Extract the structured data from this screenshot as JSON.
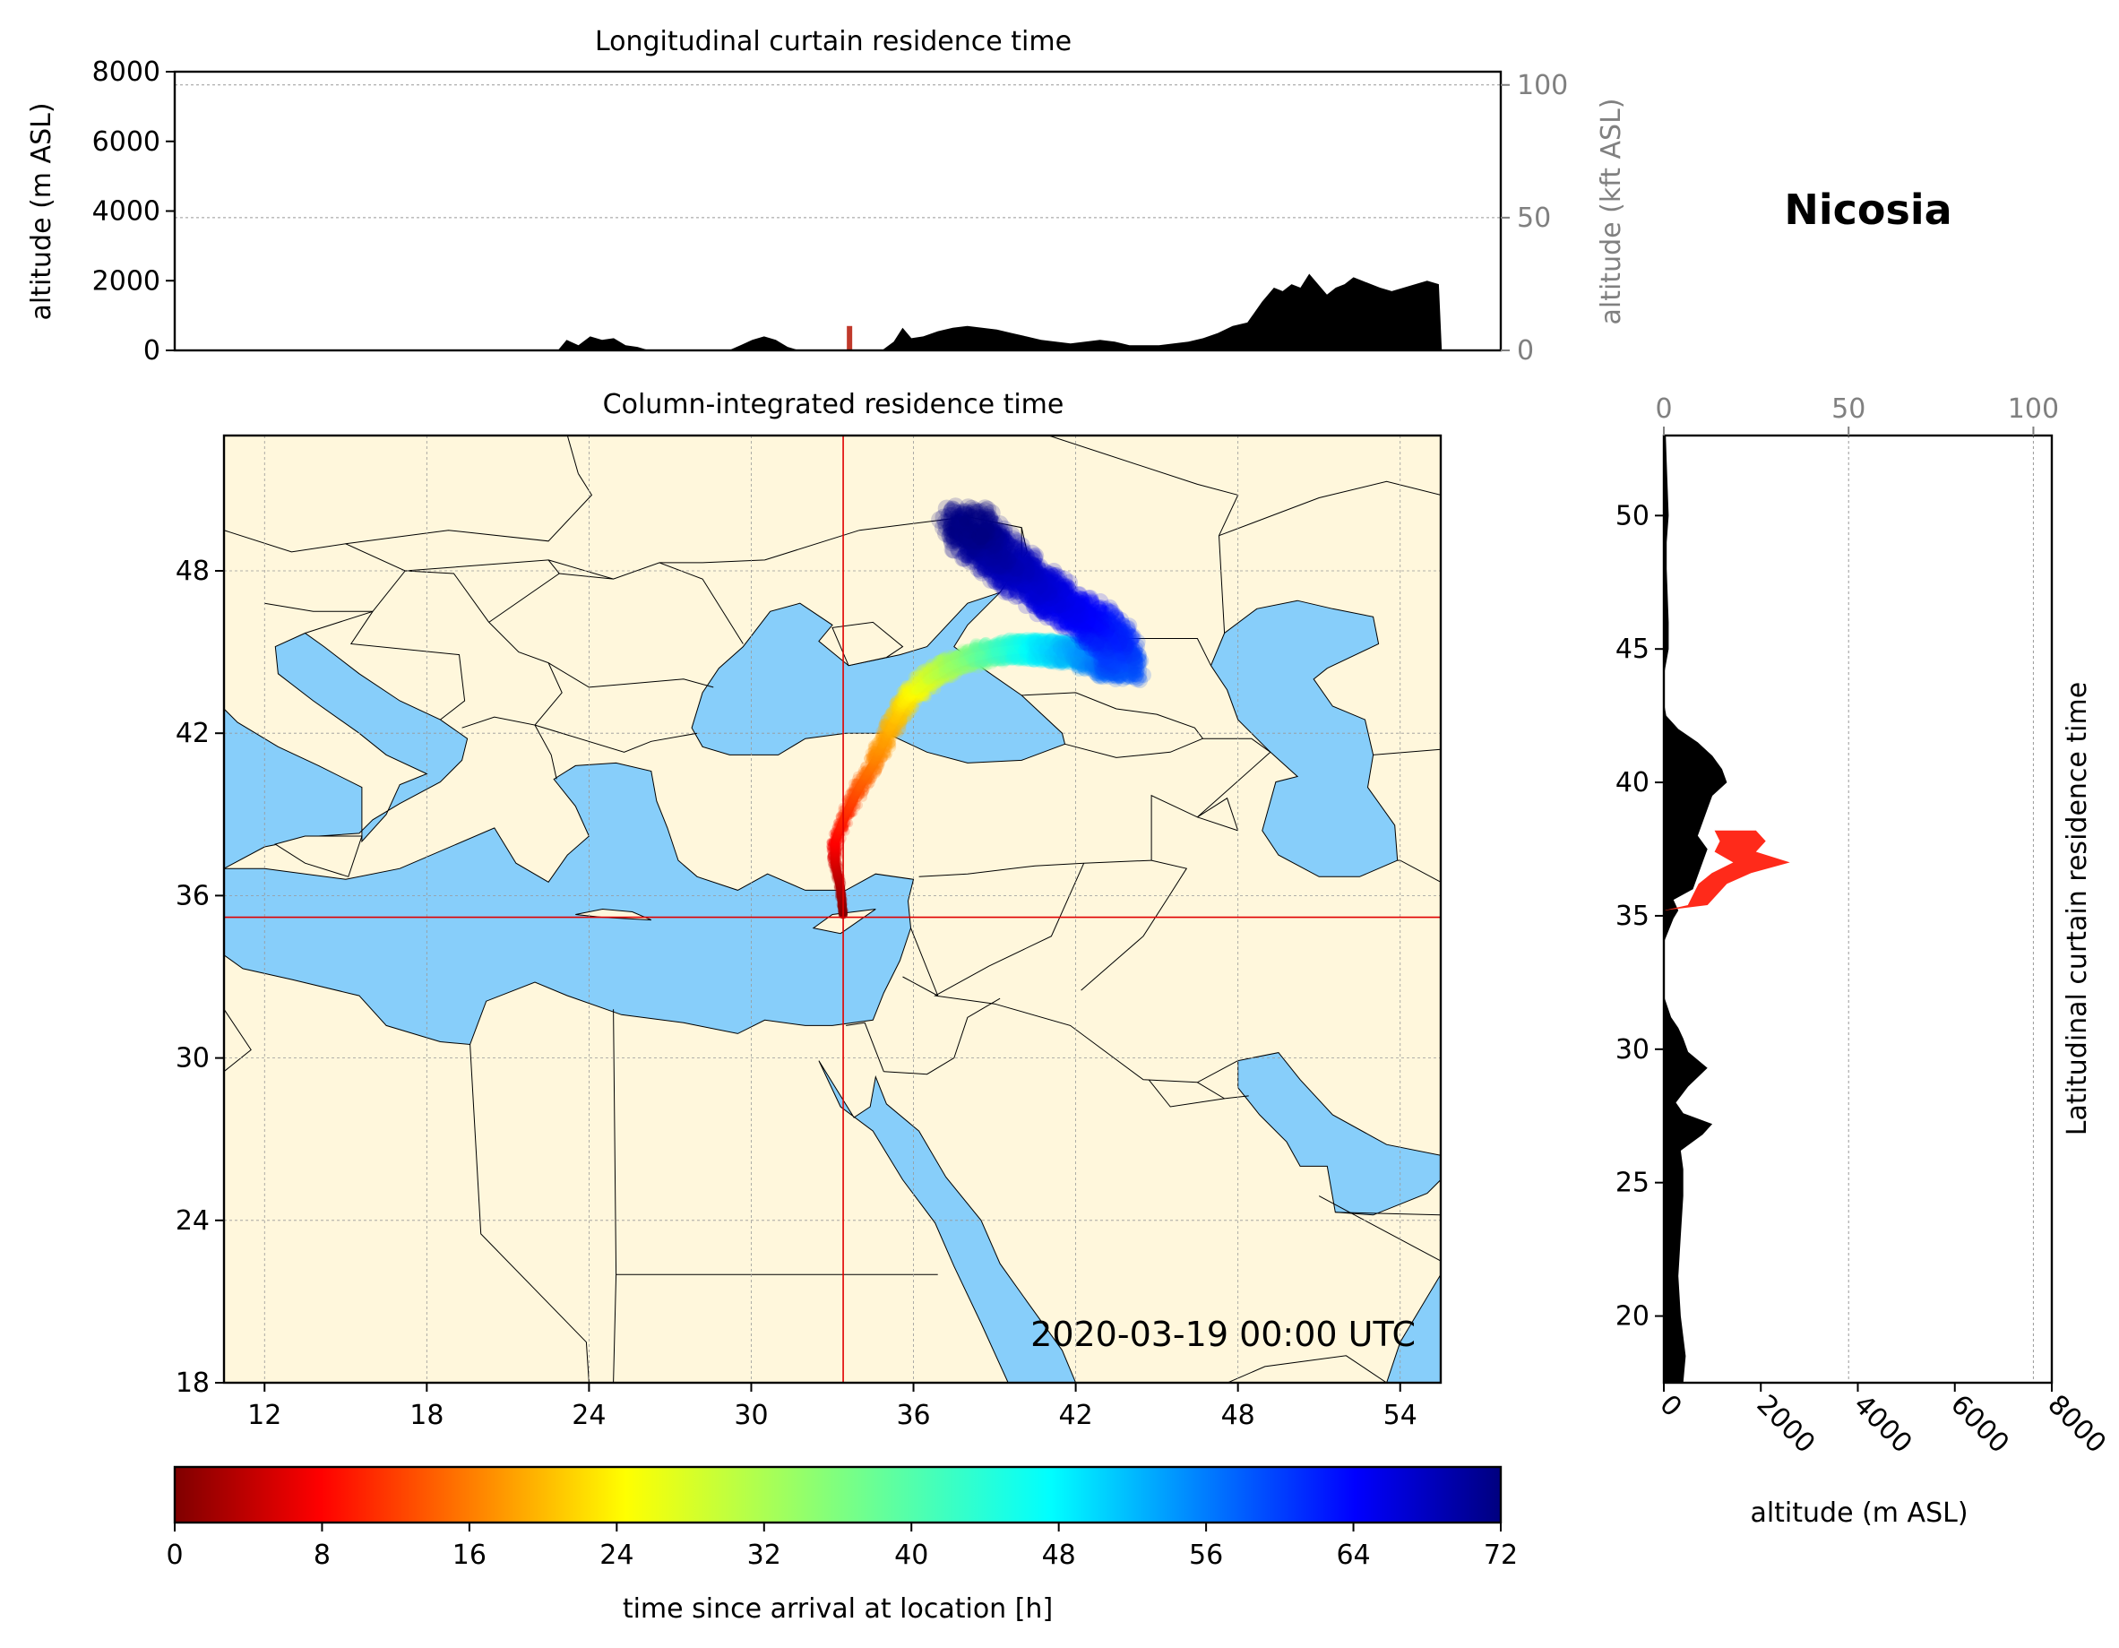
{
  "station": "Nicosia",
  "timestamp": "2020-03-19 00:00 UTC",
  "colors": {
    "sea": "#87cefa",
    "land": "#fff7dc",
    "border": "#000000",
    "crosshair": "#e00000",
    "curtain_fill": "#000000"
  },
  "chart_data": [
    {
      "id": "longitudinal",
      "type": "area",
      "title": "Longitudinal curtain residence time",
      "ylabel": "altitude (m ASL)",
      "ylabel_right": "altitude (kft ASL)",
      "ylim": [
        0,
        8000
      ],
      "yticks": [
        0,
        2000,
        4000,
        6000,
        8000
      ],
      "yticks_right": [
        0,
        50,
        100
      ],
      "xlim": [
        10.5,
        55.5
      ],
      "grid": true,
      "series": [
        {
          "x": [
            10.5,
            23.5,
            23.8,
            24.2,
            24.6,
            25.0,
            25.4,
            25.8,
            26.2,
            26.6,
            29.3,
            29.7,
            30.1,
            30.5,
            30.9,
            31.3,
            31.7,
            34.5,
            34.9,
            35.2,
            35.5,
            35.9,
            36.4,
            36.9,
            37.4,
            37.9,
            38.4,
            38.9,
            39.4,
            39.9,
            40.4,
            40.9,
            41.4,
            41.9,
            42.4,
            42.9,
            43.4,
            43.9,
            44.4,
            44.9,
            45.4,
            45.9,
            46.4,
            46.9,
            47.4,
            47.8,
            48.1,
            48.4,
            48.7,
            49.0,
            49.3,
            49.6,
            49.9,
            50.2,
            50.5,
            50.8,
            51.1,
            51.4,
            51.8,
            52.2,
            52.6,
            53.0,
            53.4,
            53.5,
            55.5
          ],
          "y": [
            0,
            0,
            300,
            150,
            400,
            300,
            350,
            150,
            100,
            0,
            0,
            150,
            300,
            400,
            300,
            100,
            0,
            0,
            250,
            650,
            350,
            400,
            550,
            650,
            700,
            650,
            600,
            500,
            400,
            300,
            250,
            200,
            250,
            300,
            250,
            150,
            150,
            150,
            200,
            250,
            350,
            500,
            700,
            800,
            1400,
            1800,
            1700,
            1900,
            1800,
            2200,
            1900,
            1600,
            1800,
            1900,
            2100,
            2000,
            1900,
            1800,
            1700,
            1800,
            1900,
            2000,
            1900,
            0,
            0
          ]
        }
      ],
      "arrival_marker": {
        "lon": 33.4,
        "altitude": [
          0,
          700
        ]
      }
    },
    {
      "id": "map",
      "type": "scatter",
      "title": "Column-integrated residence time",
      "xlim": [
        10.5,
        55.5
      ],
      "ylim": [
        18,
        53
      ],
      "xticks": [
        12,
        18,
        24,
        30,
        36,
        42,
        48,
        54
      ],
      "yticks": [
        18,
        24,
        30,
        36,
        42,
        48
      ],
      "grid": true,
      "crosshair": {
        "lon": 33.4,
        "lat": 35.2
      },
      "colorbar": {
        "label": "time since arrival at location [h]",
        "ticks": [
          0,
          8,
          16,
          24,
          32,
          40,
          48,
          56,
          64,
          72
        ],
        "range": [
          0,
          72
        ],
        "colormap": "jet"
      },
      "trajectory": {
        "lon": [
          33.4,
          33.3,
          33.1,
          33.1,
          33.5,
          34.0,
          34.6,
          35.1,
          35.6,
          36.1,
          36.7,
          37.4,
          38.2,
          39.0,
          39.8,
          40.6,
          41.4,
          42.2,
          43.0,
          43.8,
          43.4,
          42.5,
          41.5,
          40.4,
          39.4,
          38.5,
          37.8
        ],
        "lat": [
          35.3,
          36.3,
          37.2,
          38.0,
          39.0,
          40.0,
          41.0,
          42.1,
          43.0,
          43.6,
          44.1,
          44.5,
          44.8,
          45.0,
          45.1,
          45.1,
          45.0,
          45.0,
          44.7,
          44.4,
          45.5,
          46.2,
          46.8,
          47.5,
          48.3,
          49.1,
          49.9
        ],
        "hours": [
          0,
          3,
          6,
          9,
          12,
          15,
          18,
          21,
          24,
          27,
          30,
          33,
          36,
          39,
          42,
          45,
          48,
          51,
          54,
          57,
          60,
          62,
          64,
          66,
          68,
          70,
          72
        ]
      }
    },
    {
      "id": "latitudinal",
      "type": "area",
      "title": "Latitudinal curtain residence time",
      "xlabel": "altitude (m ASL)",
      "xlim": [
        0,
        8000
      ],
      "xticks": [
        0,
        2000,
        4000,
        6000,
        8000
      ],
      "xticks_top": [
        0,
        50,
        100
      ],
      "ylim": [
        17.5,
        53
      ],
      "yticks": [
        20,
        25,
        30,
        35,
        40,
        45,
        50
      ],
      "grid": true,
      "series": [
        {
          "lat": [
            17.5,
            18.5,
            20.0,
            21.5,
            23.0,
            24.5,
            25.5,
            26.2,
            26.8,
            27.2,
            27.6,
            28.0,
            28.6,
            29.3,
            29.9,
            30.4,
            30.8,
            31.2,
            32.0,
            34.0,
            34.9,
            35.2,
            35.6,
            36.0,
            36.5,
            37.0,
            37.5,
            38.0,
            38.5,
            39.0,
            39.5,
            40.0,
            40.5,
            41.0,
            41.5,
            42.0,
            42.5,
            43.0,
            44.0,
            45.0,
            46.0,
            47.0,
            48.0,
            49.0,
            50.0,
            51.0,
            52.0,
            53.0
          ],
          "alt": [
            400,
            450,
            350,
            300,
            350,
            400,
            400,
            350,
            800,
            1000,
            400,
            250,
            500,
            900,
            500,
            400,
            300,
            150,
            0,
            0,
            200,
            300,
            200,
            600,
            700,
            800,
            900,
            700,
            800,
            900,
            1000,
            1300,
            1200,
            1000,
            700,
            300,
            50,
            0,
            0,
            100,
            100,
            80,
            60,
            60,
            100,
            80,
            60,
            40
          ]
        }
      ],
      "plume": {
        "lat": [
          35.2,
          35.4,
          36.2,
          36.6,
          37.0,
          37.4,
          37.8,
          38.2
        ],
        "alt": [
          0,
          900,
          1300,
          1800,
          2600,
          1900,
          2100,
          1900
        ]
      }
    }
  ]
}
